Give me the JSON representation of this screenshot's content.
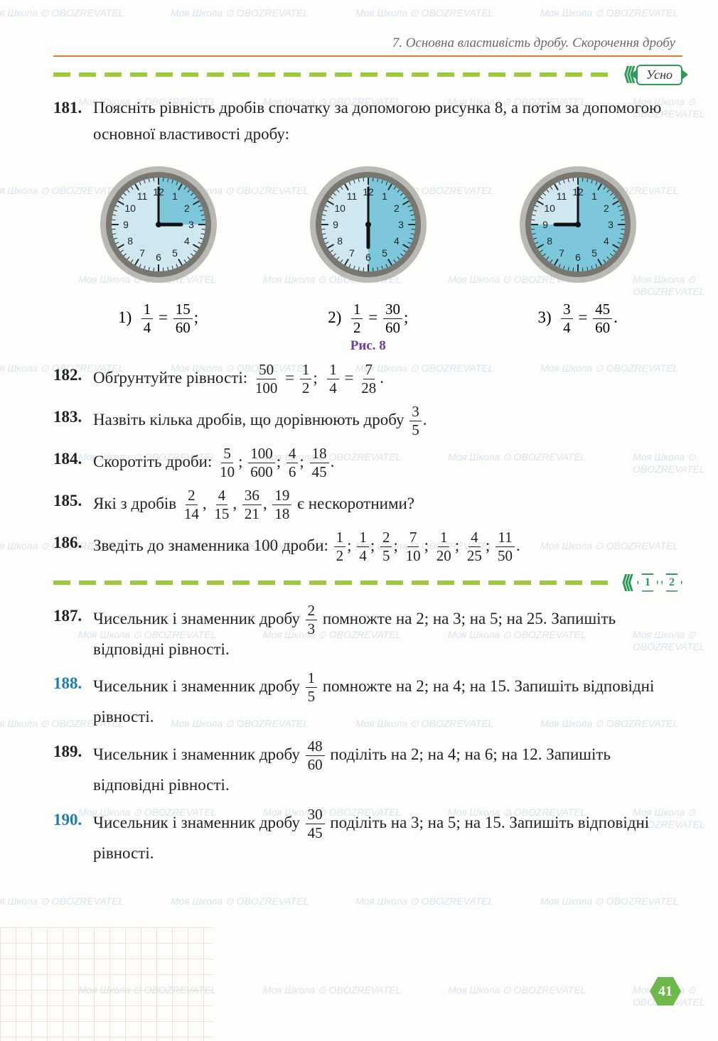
{
  "header": {
    "chapter": "7. Основна властивість дробу. Скорочення дробу"
  },
  "badges": {
    "usno": "Усно",
    "level1": "1",
    "level2": "2"
  },
  "figure_label": "Рис. 8",
  "page_number": "41",
  "clocks": [
    {
      "sector_start_deg": 0,
      "sector_end_deg": 90,
      "hour_deg": 90,
      "minute_deg": 0,
      "face_color": "#cfe7ef",
      "sector_color": "#7cc7d9",
      "rim_outer": "#b9b8b2",
      "rim_inner": "#77766f"
    },
    {
      "sector_start_deg": 0,
      "sector_end_deg": 180,
      "hour_deg": 180,
      "minute_deg": 0,
      "face_color": "#cfe7ef",
      "sector_color": "#7cc7d9",
      "rim_outer": "#b9b8b2",
      "rim_inner": "#77766f"
    },
    {
      "sector_start_deg": 0,
      "sector_end_deg": 270,
      "hour_deg": 270,
      "minute_deg": 0,
      "face_color": "#cfe7ef",
      "sector_color": "#7cc7d9",
      "rim_outer": "#b9b8b2",
      "rim_inner": "#77766f"
    }
  ],
  "eq181": [
    {
      "label": "1)",
      "a_n": "1",
      "a_d": "4",
      "b_n": "15",
      "b_d": "60",
      "end": ";"
    },
    {
      "label": "2)",
      "a_n": "1",
      "a_d": "2",
      "b_n": "30",
      "b_d": "60",
      "end": ";"
    },
    {
      "label": "3)",
      "a_n": "3",
      "a_d": "4",
      "b_n": "45",
      "b_d": "60",
      "end": "."
    }
  ],
  "p181": {
    "num": "181.",
    "text1": "Поясніть рівність дробів спочатку за допомогою рисунка 8, а потім за допомогою основної властивості дробу:"
  },
  "p182": {
    "num": "182.",
    "lead": "Обґрунтуйте рівності: ",
    "f1n": "50",
    "f1d": "100",
    "f2n": "1",
    "f2d": "2",
    "f3n": "1",
    "f3d": "4",
    "f4n": "7",
    "f4d": "28"
  },
  "p183": {
    "num": "183.",
    "lead": "Назвіть кілька дробів, що дорівнюють дробу ",
    "fn": "3",
    "fd": "5",
    "end": "."
  },
  "p184": {
    "num": "184.",
    "lead": "Скоротіть дроби: ",
    "f": [
      [
        "5",
        "10"
      ],
      [
        "100",
        "600"
      ],
      [
        "4",
        "6"
      ],
      [
        "18",
        "45"
      ]
    ]
  },
  "p185": {
    "num": "185.",
    "lead": "Які з дробів ",
    "f": [
      [
        "2",
        "14"
      ],
      [
        "4",
        "15"
      ],
      [
        "36",
        "21"
      ],
      [
        "19",
        "18"
      ]
    ],
    "tail": " є нескоротними?"
  },
  "p186": {
    "num": "186.",
    "lead": "Зведіть до знаменника 100 дроби: ",
    "f": [
      [
        "1",
        "2"
      ],
      [
        "1",
        "4"
      ],
      [
        "2",
        "5"
      ],
      [
        "7",
        "10"
      ],
      [
        "1",
        "20"
      ],
      [
        "4",
        "25"
      ],
      [
        "11",
        "50"
      ]
    ]
  },
  "p187": {
    "num": "187.",
    "t1": "Чисельник і знаменник дробу ",
    "fn": "2",
    "fd": "3",
    "t2": " помножте на 2; на 3; на 5; на 25. Запишіть відповідні рівності."
  },
  "p188": {
    "num": "188.",
    "t1": "Чисельник і знаменник дробу ",
    "fn": "1",
    "fd": "5",
    "t2": " помножте на 2; на 4; на 15. Запишіть відповідні рівності."
  },
  "p189": {
    "num": "189.",
    "t1": "Чисельник і знаменник дробу ",
    "fn": "48",
    "fd": "60",
    "t2": " поділіть на 2; на 4; на 6; на 12. Запишіть відповідні рівності."
  },
  "p190": {
    "num": "190.",
    "t1": "Чисельник і знаменник дробу ",
    "fn": "30",
    "fd": "45",
    "t2": " поділіть на 3; на 5; на 15. Запишіть відповідні рівності."
  },
  "watermark_text": "Моя Школа ⊙ OBOZREVATEL",
  "colors": {
    "accent_green": "#2e9a5a",
    "lime": "#9cc93c",
    "orange": "#e47a3a",
    "purple": "#6b3fa0",
    "blue": "#1a7db8",
    "pagenum_bg": "#6eb84c"
  }
}
